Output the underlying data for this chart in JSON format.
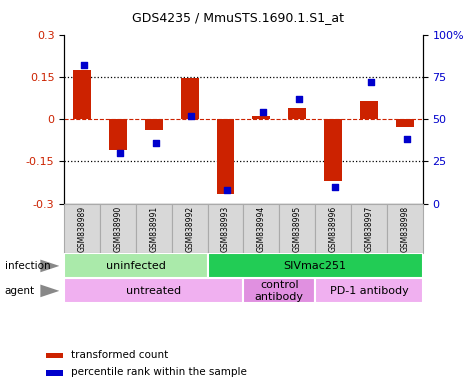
{
  "title": "GDS4235 / MmuSTS.1690.1.S1_at",
  "samples": [
    "GSM838989",
    "GSM838990",
    "GSM838991",
    "GSM838992",
    "GSM838993",
    "GSM838994",
    "GSM838995",
    "GSM838996",
    "GSM838997",
    "GSM838998"
  ],
  "red_values": [
    0.175,
    -0.11,
    -0.04,
    0.145,
    -0.265,
    0.01,
    0.04,
    -0.22,
    0.065,
    -0.03
  ],
  "blue_values_pct": [
    82,
    30,
    36,
    52,
    8,
    54,
    62,
    10,
    72,
    38
  ],
  "ylim": [
    -0.3,
    0.3
  ],
  "yticks_left": [
    -0.3,
    -0.15,
    0.0,
    0.15,
    0.3
  ],
  "yticks_right": [
    0,
    25,
    50,
    75,
    100
  ],
  "ytick_labels_left": [
    "-0.3",
    "-0.15",
    "0",
    "0.15",
    "0.3"
  ],
  "ytick_labels_right": [
    "0",
    "25",
    "50",
    "75",
    "100%"
  ],
  "infection_groups": [
    {
      "label": "uninfected",
      "start": 0,
      "end": 4,
      "color": "#aaeaaa"
    },
    {
      "label": "SIVmac251",
      "start": 4,
      "end": 10,
      "color": "#22cc55"
    }
  ],
  "agent_groups": [
    {
      "label": "untreated",
      "start": 0,
      "end": 5,
      "color": "#f0b0f0"
    },
    {
      "label": "control\nantibody",
      "start": 5,
      "end": 7,
      "color": "#e090e0"
    },
    {
      "label": "PD-1 antibody",
      "start": 7,
      "end": 10,
      "color": "#f0b0f0"
    }
  ],
  "red_color": "#CC2200",
  "blue_color": "#0000CC",
  "zero_line_color": "#CC2200",
  "bg_color": "#FFFFFF",
  "bar_width": 0.5,
  "label_infection": "infection",
  "label_agent": "agent",
  "legend_red": "transformed count",
  "legend_blue": "percentile rank within the sample",
  "sample_box_color": "#d8d8d8",
  "sample_box_edge": "#aaaaaa"
}
